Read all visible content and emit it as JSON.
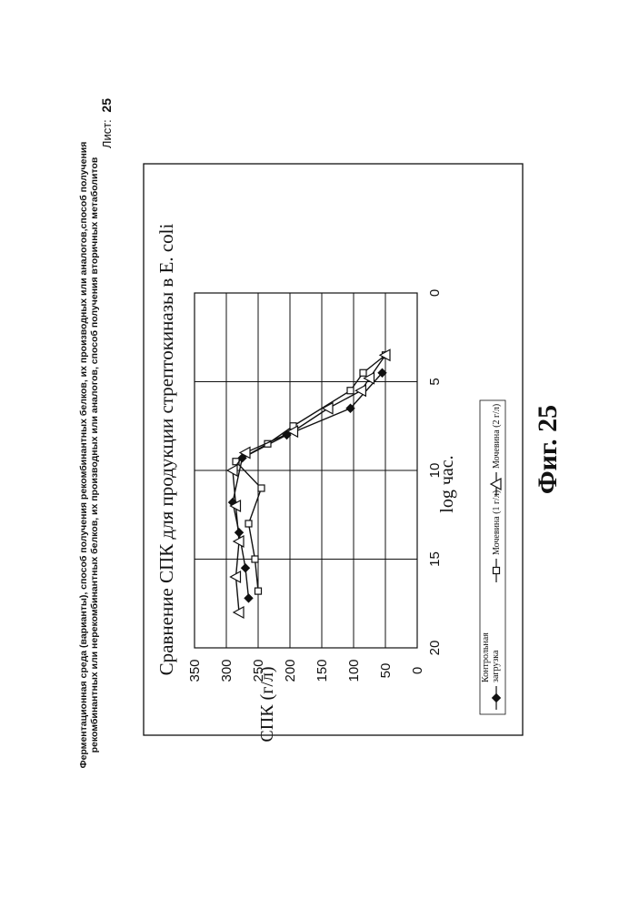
{
  "header": {
    "line1": "Ферментационная среда (варианты), способ получения рекомбинантных белков, их производных или аналогов,способ получения",
    "line2": "рекомбинантных или нерекомбинантных белков, их производных или аналогов, способ получения вторичных метаболитов",
    "sheet_label": "Лист:",
    "sheet_number": "25"
  },
  "figure_label": "Фиг. 25",
  "chart_data": {
    "type": "line",
    "title": "Сравнение СПК для продукции стрептокиназы в E. coli",
    "xlabel": "log час.",
    "ylabel": "СПК (г/л)",
    "xlim": [
      0,
      20
    ],
    "ylim": [
      0,
      350
    ],
    "x_ticks": [
      "0",
      "5",
      "10",
      "15",
      "20"
    ],
    "y_ticks": [
      "350",
      "300",
      "250",
      "200",
      "150",
      "100",
      "50",
      "0"
    ],
    "grid": true,
    "legend_position": "bottom",
    "orientation": "rotated 90° counter-clockwise on the page",
    "series": [
      {
        "name": "Контрольная загрузка",
        "marker": "diamond-filled",
        "points": [
          [
            4.5,
            55
          ],
          [
            6.5,
            105
          ],
          [
            8.0,
            205
          ],
          [
            9.3,
            275
          ],
          [
            11.8,
            290
          ],
          [
            13.5,
            280
          ],
          [
            15.5,
            270
          ],
          [
            17.2,
            265
          ]
        ]
      },
      {
        "name": "Мочевина (1 г/л)",
        "marker": "square-open",
        "points": [
          [
            3.5,
            50
          ],
          [
            4.5,
            85
          ],
          [
            5.5,
            105
          ],
          [
            7.5,
            195
          ],
          [
            8.5,
            235
          ],
          [
            9.5,
            285
          ],
          [
            11.0,
            245
          ],
          [
            13.0,
            265
          ],
          [
            15.0,
            255
          ],
          [
            16.8,
            250
          ]
        ]
      },
      {
        "name": "Мочевина (2 г/л)",
        "marker": "triangle-open",
        "points": [
          [
            3.5,
            50
          ],
          [
            4.8,
            75
          ],
          [
            5.5,
            88
          ],
          [
            6.5,
            140
          ],
          [
            7.8,
            195
          ],
          [
            9.0,
            270
          ],
          [
            10.0,
            290
          ],
          [
            12.0,
            285
          ],
          [
            14.0,
            280
          ],
          [
            16.0,
            285
          ],
          [
            18.0,
            280
          ]
        ]
      }
    ]
  }
}
